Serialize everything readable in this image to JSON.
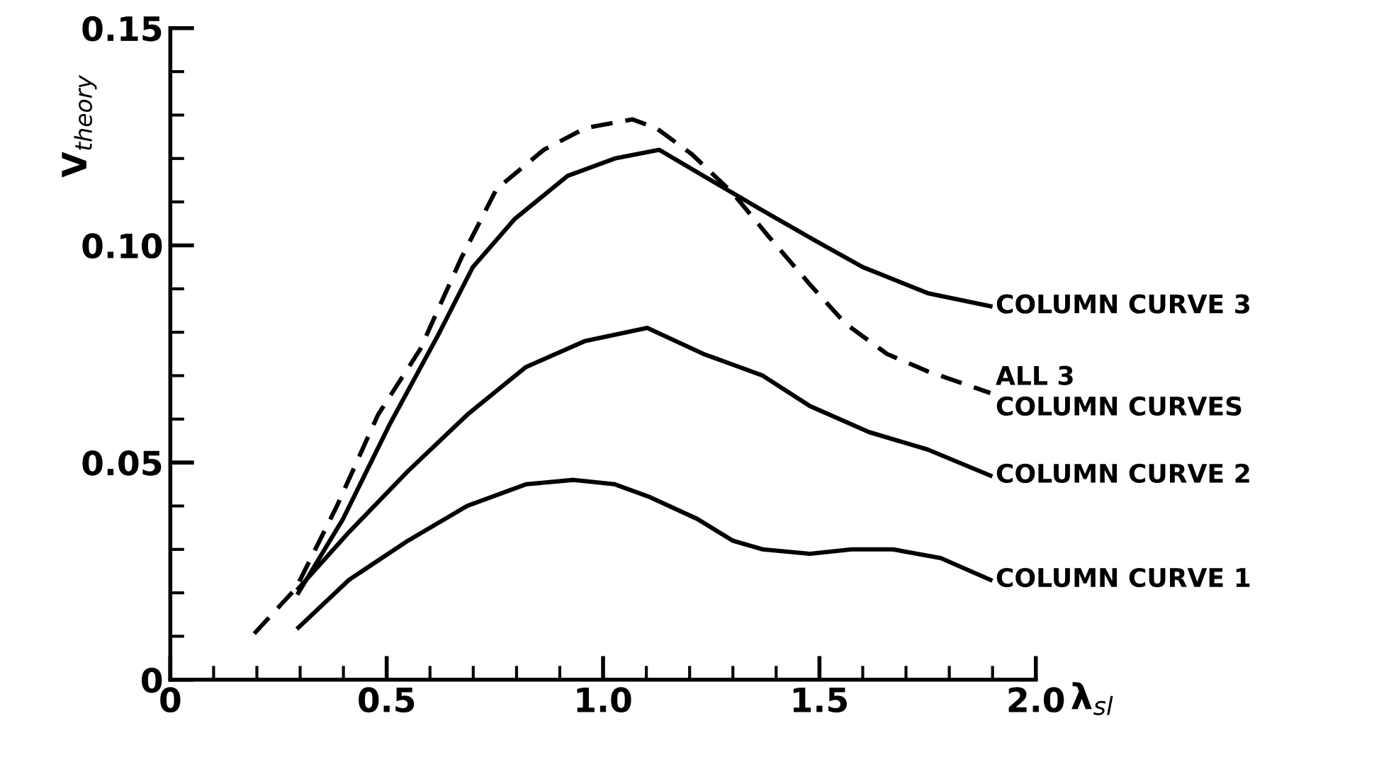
{
  "chart_data": {
    "type": "line",
    "xlabel": "λ$_{sl}$",
    "ylabel": "V$_{theory}$",
    "xlim": [
      0,
      2.0
    ],
    "ylim": [
      0,
      0.15
    ],
    "xticks": [
      0,
      0.5,
      {
        "value": 1.0,
        "label": "1.0"
      },
      1.5,
      {
        "value": 2.0,
        "label": "2.0"
      }
    ],
    "yticks": [
      0,
      0.05,
      {
        "value": 0.1,
        "label": "0.10"
      },
      0.15
    ],
    "grid": false,
    "legend": false,
    "marker": "none",
    "series": [
      {
        "name": "ALL 3\nCOLUMN CURVES",
        "color": "#000000",
        "line_style": "dashed",
        "x": [
          0.194,
          0.29,
          0.385,
          0.48,
          0.577,
          0.672,
          0.754,
          0.863,
          0.959,
          1.068,
          1.123,
          1.205,
          1.3,
          1.383,
          1.478,
          1.56,
          1.656,
          1.75,
          1.895
        ],
        "values": [
          0.0106,
          0.021,
          0.04,
          0.061,
          0.076,
          0.097,
          0.113,
          0.122,
          0.127,
          0.129,
          0.127,
          0.121,
          0.112,
          0.102,
          0.091,
          0.082,
          0.075,
          0.071,
          0.066
        ]
      },
      {
        "name": "COLUMN CURVE 3",
        "color": "#000000",
        "line_style": "solid",
        "x": [
          0.296,
          0.399,
          0.508,
          0.617,
          0.699,
          0.795,
          0.918,
          1.027,
          1.13,
          1.232,
          1.369,
          1.492,
          1.6,
          1.75,
          1.895
        ],
        "values": [
          0.02,
          0.037,
          0.059,
          0.079,
          0.095,
          0.106,
          0.116,
          0.12,
          0.122,
          0.116,
          0.108,
          0.101,
          0.095,
          0.089,
          0.086
        ]
      },
      {
        "name": "COLUMN CURVE 2",
        "color": "#000000",
        "line_style": "solid",
        "x": [
          0.296,
          0.413,
          0.549,
          0.686,
          0.822,
          0.959,
          1.102,
          1.232,
          1.369,
          1.478,
          1.615,
          1.75,
          1.895
        ],
        "values": [
          0.021,
          0.034,
          0.048,
          0.061,
          0.072,
          0.078,
          0.081,
          0.075,
          0.07,
          0.063,
          0.057,
          0.053,
          0.047
        ]
      },
      {
        "name": "COLUMN CURVE 1",
        "color": "#000000",
        "line_style": "solid",
        "x": [
          0.296,
          0.413,
          0.549,
          0.686,
          0.822,
          0.932,
          1.027,
          1.109,
          1.218,
          1.3,
          1.369,
          1.478,
          1.574,
          1.67,
          1.78,
          1.895
        ],
        "values": [
          0.012,
          0.023,
          0.032,
          0.04,
          0.045,
          0.046,
          0.045,
          0.042,
          0.037,
          0.032,
          0.03,
          0.029,
          0.03,
          0.03,
          0.028,
          0.023
        ]
      }
    ]
  }
}
